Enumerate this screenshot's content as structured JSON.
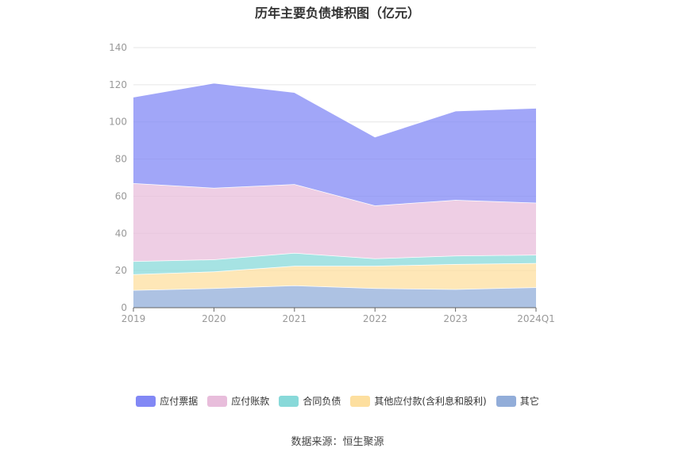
{
  "chart_data": {
    "type": "area",
    "stacked": true,
    "title": "历年主要负债堆积图（亿元）",
    "categories": [
      "2019",
      "2020",
      "2021",
      "2022",
      "2023",
      "2024Q1"
    ],
    "ylim": [
      0,
      140
    ],
    "yticks": [
      0,
      20,
      40,
      60,
      80,
      100,
      120,
      140
    ],
    "grid": true,
    "legend_position": "bottom",
    "series": [
      {
        "name": "其它",
        "color": "#92add9",
        "values": [
          9.5,
          10.5,
          12,
          10.5,
          10,
          11
        ]
      },
      {
        "name": "其他应付款(含利息和股利)",
        "color": "#fddf9f",
        "values": [
          8.5,
          9,
          10.5,
          12,
          13.5,
          13
        ]
      },
      {
        "name": "合同负债",
        "color": "#88d9d9",
        "values": [
          7,
          6.5,
          7,
          4,
          4.5,
          4.5
        ]
      },
      {
        "name": "应付账款",
        "color": "#e8bddb",
        "values": [
          42,
          38.5,
          37,
          28.5,
          30,
          28
        ]
      },
      {
        "name": "应付票据",
        "color": "#8288f5",
        "values": [
          46.5,
          56.5,
          49.5,
          37,
          48,
          51
        ]
      }
    ]
  },
  "legend_order": [
    "应付票据",
    "应付账款",
    "合同负债",
    "其他应付款(含利息和股利)",
    "其它"
  ],
  "source": "数据来源：恒生聚源"
}
